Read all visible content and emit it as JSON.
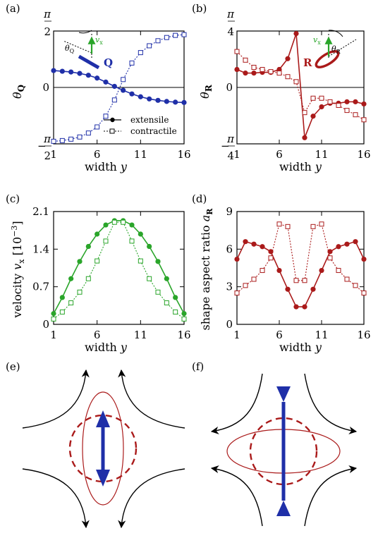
{
  "colors": {
    "blue": "#1f2fa8",
    "red": "#aa1a1a",
    "green": "#2aa52a",
    "black": "#000000"
  },
  "chart_data": [
    {
      "panel": "(a)",
      "type": "line",
      "xlabel": "width y",
      "ylabel": "θQ",
      "xticks": [
        "1",
        "6",
        "11",
        "16"
      ],
      "yticks": [
        "−π/2",
        "0",
        "π/2"
      ],
      "xlim": [
        1,
        16
      ],
      "ylim": [
        -1.5708,
        1.5708
      ],
      "x": [
        1,
        2,
        3,
        4,
        5,
        6,
        7,
        8,
        9,
        10,
        11,
        12,
        13,
        14,
        15,
        16
      ],
      "series": [
        {
          "name": "extensile",
          "style": "solid-filled-circle",
          "color": "#1f2fa8",
          "values": [
            0.47,
            0.45,
            0.43,
            0.39,
            0.34,
            0.26,
            0.15,
            0.03,
            -0.08,
            -0.18,
            -0.26,
            -0.32,
            -0.36,
            -0.39,
            -0.41,
            -0.42
          ]
        },
        {
          "name": "contractile",
          "style": "dotted-open-square",
          "color": "#1f2fa8",
          "values": [
            -1.5,
            -1.48,
            -1.44,
            -1.38,
            -1.27,
            -1.1,
            -0.8,
            -0.35,
            0.22,
            0.68,
            0.97,
            1.16,
            1.3,
            1.39,
            1.45,
            1.47
          ]
        }
      ],
      "inset_labels": {
        "theta": "θQ",
        "velocity": "vx",
        "tensor": "Q"
      }
    },
    {
      "panel": "(b)",
      "type": "line",
      "xlabel": "width y",
      "ylabel": "θR",
      "xticks": [
        "1",
        "6",
        "11",
        "16"
      ],
      "yticks": [
        "−π/4",
        "0",
        "π/4"
      ],
      "xlim": [
        1,
        16
      ],
      "ylim": [
        -0.7854,
        0.7854
      ],
      "x": [
        1,
        2,
        3,
        4,
        5,
        6,
        7,
        8,
        9,
        10,
        11,
        12,
        13,
        14,
        15,
        16
      ],
      "series": [
        {
          "name": "extensile",
          "style": "solid-filled-circle",
          "color": "#aa1a1a",
          "values": [
            0.25,
            0.2,
            0.2,
            0.21,
            0.21,
            0.25,
            0.4,
            0.75,
            -0.7,
            -0.4,
            -0.27,
            -0.22,
            -0.22,
            -0.2,
            -0.2,
            -0.23
          ]
        },
        {
          "name": "contractile",
          "style": "dotted-open-square",
          "color": "#aa1a1a",
          "values": [
            0.5,
            0.38,
            0.28,
            0.25,
            0.22,
            0.2,
            0.15,
            0.08,
            -0.35,
            -0.15,
            -0.15,
            -0.2,
            -0.25,
            -0.32,
            -0.38,
            -0.45
          ]
        }
      ],
      "inset_labels": {
        "theta": "θR",
        "velocity": "vx",
        "tensor": "R"
      }
    },
    {
      "panel": "(c)",
      "type": "line",
      "xlabel": "width y",
      "ylabel": "velocity vx [10−3]",
      "xticks": [
        "1",
        "6",
        "11",
        "16"
      ],
      "yticks": [
        "0",
        "0.7",
        "1.4",
        "2.1"
      ],
      "xlim": [
        1,
        16
      ],
      "ylim": [
        0,
        2.1
      ],
      "x": [
        1,
        2,
        3,
        4,
        5,
        6,
        7,
        8,
        9,
        10,
        11,
        12,
        13,
        14,
        15,
        16
      ],
      "series": [
        {
          "name": "extensile",
          "style": "solid-filled-circle",
          "color": "#2aa52a",
          "values": [
            0.2,
            0.5,
            0.85,
            1.17,
            1.45,
            1.68,
            1.85,
            1.93,
            1.93,
            1.85,
            1.68,
            1.45,
            1.17,
            0.85,
            0.5,
            0.2
          ]
        },
        {
          "name": "contractile",
          "style": "dotted-open-square",
          "color": "#2aa52a",
          "values": [
            0.1,
            0.23,
            0.4,
            0.6,
            0.85,
            1.18,
            1.55,
            1.9,
            1.9,
            1.55,
            1.18,
            0.85,
            0.6,
            0.4,
            0.23,
            0.1
          ]
        }
      ]
    },
    {
      "panel": "(d)",
      "type": "line",
      "xlabel": "width y",
      "ylabel": "shape aspect ratio aR",
      "xticks": [
        "1",
        "6",
        "11",
        "16"
      ],
      "yticks": [
        "0",
        "3",
        "6",
        "9"
      ],
      "xlim": [
        1,
        16
      ],
      "ylim": [
        0,
        9
      ],
      "x": [
        1,
        2,
        3,
        4,
        5,
        6,
        7,
        8,
        9,
        10,
        11,
        12,
        13,
        14,
        15,
        16
      ],
      "series": [
        {
          "name": "extensile",
          "style": "solid-filled-circle",
          "color": "#aa1a1a",
          "values": [
            5.2,
            6.6,
            6.4,
            6.2,
            5.8,
            4.3,
            2.8,
            1.4,
            1.4,
            2.8,
            4.3,
            5.8,
            6.2,
            6.4,
            6.6,
            5.2
          ]
        },
        {
          "name": "contractile",
          "style": "dotted-open-square",
          "color": "#aa1a1a",
          "values": [
            2.5,
            3.1,
            3.6,
            4.3,
            5.3,
            8.0,
            7.8,
            3.5,
            3.5,
            7.8,
            8.0,
            5.3,
            4.3,
            3.6,
            3.1,
            2.5
          ]
        }
      ]
    }
  ],
  "legend": {
    "items": [
      "extensile",
      "contractile"
    ]
  },
  "diagrams": [
    {
      "panel": "(e)"
    },
    {
      "panel": "(f)"
    }
  ]
}
